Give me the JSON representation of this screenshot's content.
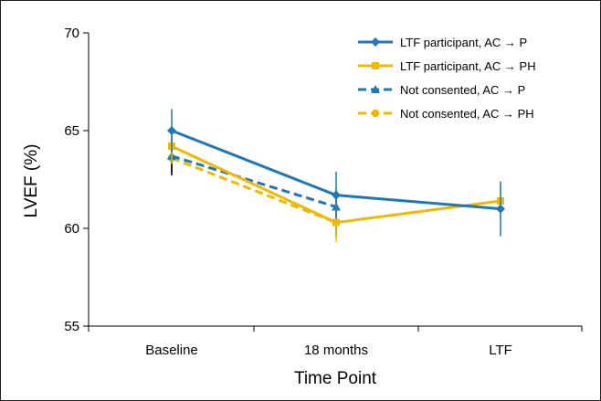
{
  "chart_data": {
    "type": "line",
    "xlabel": "Time Point",
    "ylabel": "LVEF (%)",
    "categories": [
      "Baseline",
      "18 months",
      "LTF"
    ],
    "ylim": [
      55,
      70
    ],
    "yticks": [
      55,
      60,
      65,
      70
    ],
    "grid": false,
    "legend_position": "top-right",
    "series": [
      {
        "name": "LTF participant, AC → P",
        "color": "#1f77b8",
        "dash": "solid",
        "marker": "diamond",
        "values": [
          65.0,
          61.7,
          61.0
        ],
        "err_low": [
          63.9,
          60.5,
          59.6
        ],
        "err_high": [
          66.1,
          62.9,
          62.4
        ]
      },
      {
        "name": "LTF participant, AC → PH",
        "color": "#f0b800",
        "dash": "solid",
        "marker": "square",
        "values": [
          64.2,
          60.3,
          61.4
        ],
        "err_low": [
          63.3,
          59.3,
          60.5
        ],
        "err_high": [
          65.1,
          61.3,
          62.3
        ]
      },
      {
        "name": "Not consented, AC → P",
        "color": "#1f77b8",
        "dash": "dashed",
        "marker": "triangle",
        "values": [
          63.7,
          61.1,
          null
        ],
        "err_low": [
          62.7,
          60.2,
          null
        ],
        "err_high": [
          64.7,
          62.0,
          null
        ]
      },
      {
        "name": "Not consented, AC → PH",
        "color": "#f0b800",
        "dash": "dashed",
        "marker": "circle",
        "values": [
          63.6,
          60.3,
          null
        ],
        "err_low": [
          62.8,
          59.6,
          null
        ],
        "err_high": [
          64.4,
          61.0,
          null
        ]
      }
    ]
  }
}
